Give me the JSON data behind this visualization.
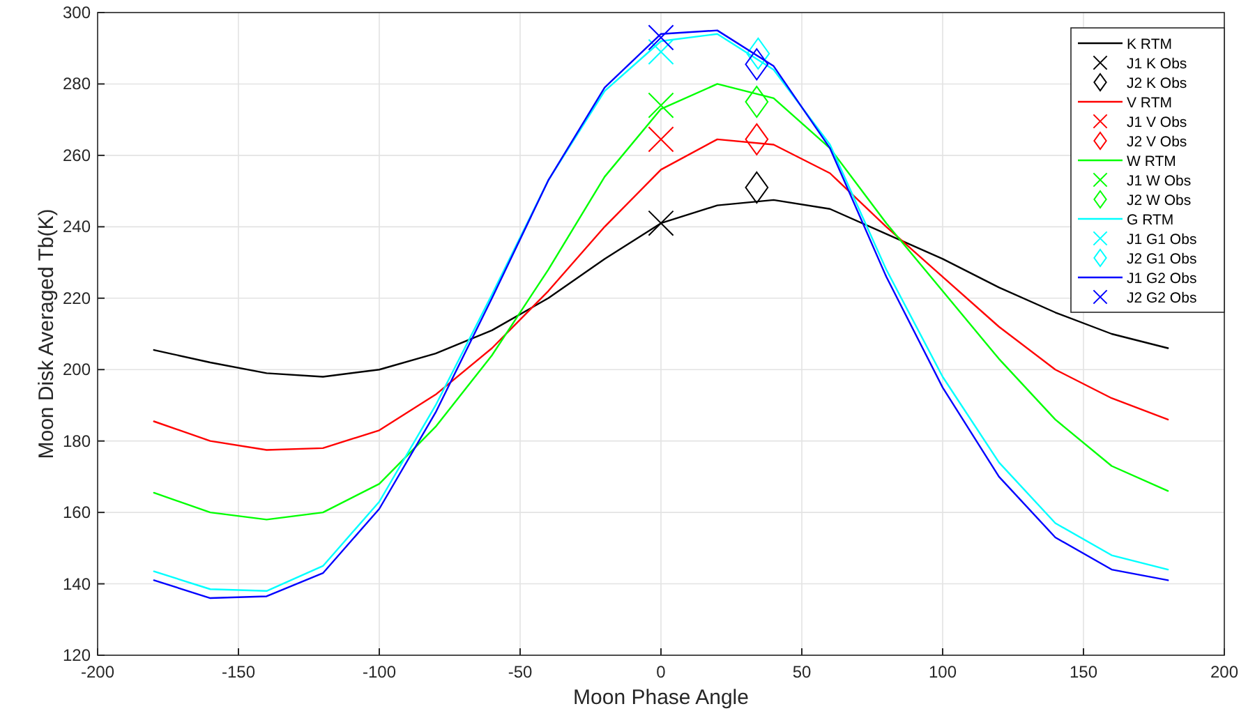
{
  "chart_data": {
    "type": "line",
    "xlabel": "Moon Phase Angle",
    "ylabel": "Moon Disk Averaged Tb(K)",
    "xlim": [
      -200,
      200
    ],
    "xticks": [
      -200,
      -150,
      -100,
      -50,
      0,
      50,
      100,
      150,
      200
    ],
    "ylim": [
      120,
      300
    ],
    "yticks": [
      120,
      140,
      160,
      180,
      200,
      220,
      240,
      260,
      280,
      300
    ],
    "grid": true,
    "legend": "top right",
    "series": [
      {
        "name": "K RTM",
        "type": "line",
        "color": "#000000",
        "marker": "none",
        "x": [
          -180,
          -160,
          -140,
          -120,
          -100,
          -80,
          -60,
          -40,
          -20,
          0,
          20,
          40,
          60,
          80,
          100,
          120,
          140,
          160,
          180
        ],
        "values": [
          205.5,
          202,
          199,
          198,
          200,
          204.5,
          211,
          220,
          231,
          241,
          246,
          247.5,
          245,
          238,
          231,
          223,
          216,
          210,
          206
        ]
      },
      {
        "name": "J1 K Obs",
        "type": "scatter",
        "color": "#000000",
        "marker": "cross",
        "x": [
          0
        ],
        "values": [
          241
        ]
      },
      {
        "name": "J2 K Obs",
        "type": "scatter",
        "color": "#000000",
        "marker": "diamond",
        "x": [
          34
        ],
        "values": [
          251
        ]
      },
      {
        "name": "V RTM",
        "type": "line",
        "color": "#ff0000",
        "marker": "none",
        "x": [
          -180,
          -160,
          -140,
          -120,
          -100,
          -80,
          -60,
          -40,
          -20,
          0,
          20,
          40,
          60,
          80,
          100,
          120,
          140,
          160,
          180
        ],
        "values": [
          185.5,
          180,
          177.5,
          178,
          183,
          193,
          206,
          222,
          240,
          256,
          264.5,
          263,
          255,
          240,
          226,
          212,
          200,
          192,
          186
        ]
      },
      {
        "name": "J1 V Obs",
        "type": "scatter",
        "color": "#ff0000",
        "marker": "cross",
        "x": [
          0
        ],
        "values": [
          264.5
        ]
      },
      {
        "name": "J2 V Obs",
        "type": "scatter",
        "color": "#ff0000",
        "marker": "diamond",
        "x": [
          34
        ],
        "values": [
          264.5
        ]
      },
      {
        "name": "W RTM",
        "type": "line",
        "color": "#00ff00",
        "marker": "none",
        "x": [
          -180,
          -160,
          -140,
          -120,
          -100,
          -80,
          -60,
          -40,
          -20,
          0,
          20,
          40,
          60,
          80,
          100,
          120,
          140,
          160,
          180
        ],
        "values": [
          165.5,
          160,
          158,
          160,
          168,
          184,
          204,
          228,
          254,
          273,
          280,
          276,
          262,
          241,
          222,
          203,
          186,
          173,
          166
        ]
      },
      {
        "name": "J1 W Obs",
        "type": "scatter",
        "color": "#00ff00",
        "marker": "cross",
        "x": [
          0
        ],
        "values": [
          274
        ]
      },
      {
        "name": "J2 W Obs",
        "type": "scatter",
        "color": "#00ff00",
        "marker": "diamond",
        "x": [
          34
        ],
        "values": [
          275
        ]
      },
      {
        "name": "G RTM",
        "type": "line",
        "color": "#00ffff",
        "marker": "none",
        "x": [
          -180,
          -160,
          -140,
          -120,
          -100,
          -80,
          -60,
          -40,
          -20,
          0,
          20,
          40,
          60,
          80,
          100,
          120,
          140,
          160,
          180
        ],
        "values": [
          143.5,
          138.5,
          138,
          145,
          163,
          190,
          221,
          253,
          278,
          292,
          294,
          284,
          263,
          228,
          198,
          174,
          157,
          148,
          144
        ]
      },
      {
        "name": "J1 G1 Obs",
        "type": "scatter",
        "color": "#00ffff",
        "marker": "cross",
        "x": [
          0
        ],
        "values": [
          289
        ]
      },
      {
        "name": "J2 G1 Obs",
        "type": "scatter",
        "color": "#00ffff",
        "marker": "diamond",
        "x": [
          34.5
        ],
        "values": [
          288.5
        ]
      },
      {
        "name": "J1 G2 Obs",
        "type": "line",
        "color": "#0000ff",
        "marker": "none",
        "x": [
          -180,
          -160,
          -140,
          -120,
          -100,
          -80,
          -60,
          -40,
          -20,
          0,
          20,
          40,
          60,
          80,
          100,
          120,
          140,
          160,
          180
        ],
        "values": [
          141,
          136,
          136.5,
          143,
          161,
          188,
          220,
          253,
          279,
          294,
          295,
          285,
          262,
          226,
          195,
          170,
          153,
          144,
          141
        ]
      },
      {
        "name": "J2 G2 Obs",
        "type": "scatter",
        "color": "#0000ff",
        "marker": "cross",
        "x": [
          0
        ],
        "values": [
          293
        ]
      },
      {
        "type": "scatter",
        "color": "#0000ff",
        "marker": "diamond",
        "x": [
          34
        ],
        "values": [
          285.5
        ]
      }
    ]
  }
}
